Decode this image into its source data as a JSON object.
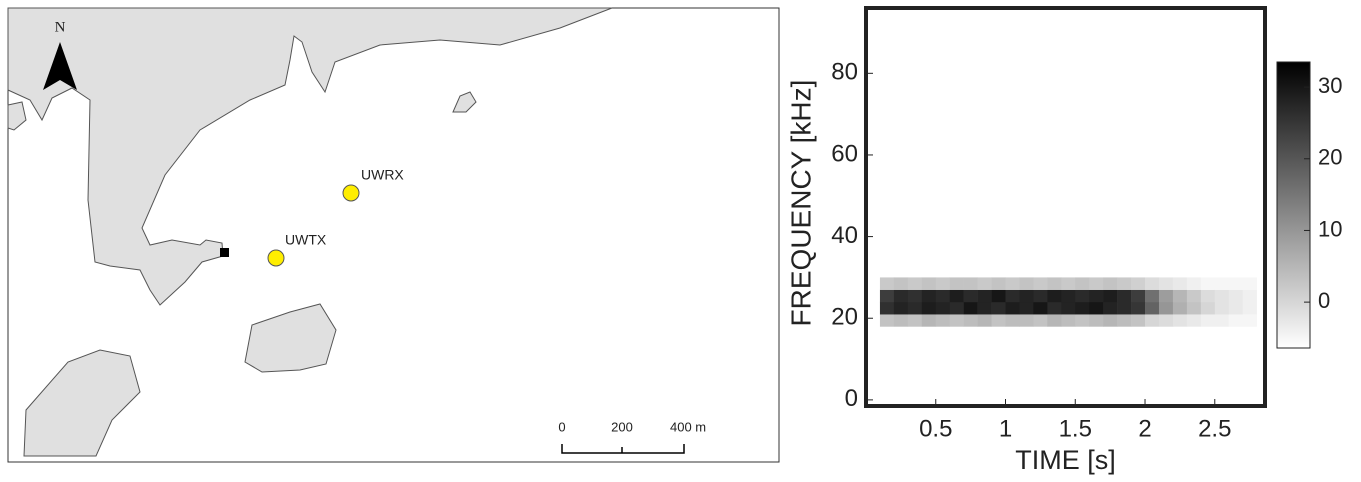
{
  "map": {
    "north": "N",
    "stations": [
      {
        "label": "UWRX"
      },
      {
        "label": "UWTX"
      }
    ],
    "scale_bar": {
      "labels": [
        "0",
        "200",
        "400 m"
      ]
    }
  },
  "chart_data": {
    "type": "heatmap",
    "xlabel": "TIME [s]",
    "ylabel": "FREQUENCY [kHz]",
    "xlim": [
      0,
      2.86
    ],
    "ylim": [
      -1.5,
      96
    ],
    "xticks": [
      0.5,
      1,
      1.5,
      2,
      2.5
    ],
    "yticks": [
      0,
      20,
      40,
      60,
      80
    ],
    "xbins": [
      0.1,
      0.2,
      0.3,
      0.4,
      0.5,
      0.6,
      0.7,
      0.8,
      0.9,
      1.0,
      1.1,
      1.2,
      1.3,
      1.4,
      1.5,
      1.6,
      1.7,
      1.8,
      1.9,
      2.0,
      2.1,
      2.2,
      2.3,
      2.4,
      2.5,
      2.6,
      2.7,
      2.8
    ],
    "ybins": [
      18,
      21,
      24,
      27,
      30
    ],
    "values": [
      [
        3,
        4,
        3,
        5,
        4,
        3,
        4,
        5,
        3,
        4,
        4,
        3,
        5,
        4,
        3,
        4,
        5,
        4,
        3,
        0,
        -1,
        -2,
        -3,
        -4,
        -4,
        -5,
        -5
      ],
      [
        26,
        28,
        27,
        29,
        28,
        27,
        30,
        28,
        27,
        29,
        28,
        30,
        27,
        28,
        29,
        30,
        28,
        27,
        25,
        18,
        10,
        6,
        3,
        0,
        -2,
        -3,
        -4
      ],
      [
        24,
        27,
        26,
        28,
        27,
        29,
        27,
        28,
        30,
        27,
        28,
        27,
        29,
        28,
        27,
        28,
        29,
        27,
        24,
        16,
        9,
        5,
        2,
        -1,
        -2,
        -3,
        -4
      ],
      [
        2,
        3,
        2,
        3,
        2,
        3,
        3,
        2,
        3,
        2,
        3,
        2,
        3,
        2,
        3,
        2,
        3,
        2,
        1,
        -1,
        -2,
        -3,
        -4,
        -5,
        -5,
        -5,
        -5
      ]
    ],
    "clim": [
      -6.4,
      33.5
    ],
    "colorbar_ticks": [
      0,
      10,
      20,
      30
    ]
  }
}
